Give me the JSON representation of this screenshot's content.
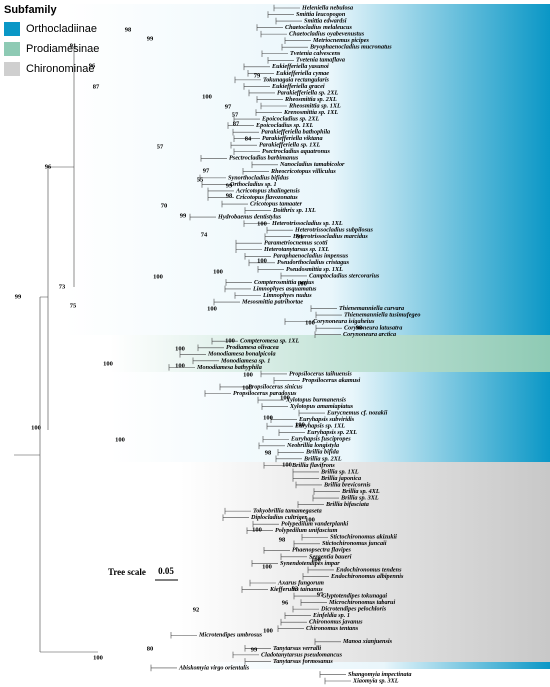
{
  "legend": {
    "title": "Subfamily",
    "items": [
      {
        "label": "Orthocladiinae",
        "color": "#0a97c6"
      },
      {
        "label": "Prodiamesinae",
        "color": "#8ecab4"
      },
      {
        "label": "Chironominae",
        "color": "#cfcfcf"
      }
    ]
  },
  "taxa": [
    "Heleniella nebulosa",
    "Smittia leucopogon",
    "Smittia edwardsi",
    "Chaetocladius melaleucus",
    "Chaetocladius oyabevenustus",
    "Metriocnemus picipes",
    "Bryophaenocladius mucronatus",
    "Tvetenia calvescens",
    "Tvetenia tamaflava",
    "Eukiefferiella yasunoi",
    "Eukiefferiella cymae",
    "Tokunagaia rectangularis",
    "Eukiefferiella gracei",
    "Parakiefferiella sp. 2XL",
    "Rheosmittia sp. 2XL",
    "Rheosmittia sp. 1XL",
    "Krenosmittia sp. 1XL",
    "Epoicocladius sp. 2XL",
    "Epoicocladius sp. 1XL",
    "Parakiefferiella bathophila",
    "Parakiefferiella viktana",
    "Parakiefferiella sp. 1XL",
    "Psectrocladius aquatronus",
    "Psectrocladius barbimanus",
    "Nanocladius tamabicolor",
    "Rheocricotopus villiculus",
    "Synorthocladius bifidus",
    "Orthocladius sp. 1",
    "Acricotopus zhalingensis",
    "Cricotopus flavozonatus",
    "Cricotopus tamaater",
    "Doithrix sp. 1XL",
    "Hydrobaenus dentistylus",
    "Heterotrissocladius sp. 1XL",
    "Heterotrissocladius subpilosus",
    "Heterotrissocladius marcidus",
    "Parametriocnemus scotti",
    "Heterotanytarsus sp. 1XL",
    "Paraphaenocladius impensus",
    "Pseudorthocladius cristagus",
    "Pseudosmittia sp. 1XL",
    "Camptocladius stercorarius",
    "Compterosmittia nerius",
    "Limnophyes asquamatus",
    "Limnophyes nudus",
    "Mesosmittia patrihortae",
    "Thienemanniella curvara",
    "Thienemanniella tusimufegeo",
    "Corynoneura isigaheius",
    "Corynoneura latusatra",
    "Corynoneura arctica",
    "Compteromesa sp. 1XL",
    "Prodiamesa olivacea",
    "Monodiamesa bonalpicola",
    "Monodiamesa sp. 1",
    "Monodiamesa bathyphila",
    "Propsilocerus taihuensis",
    "Propsilocerus akamusi",
    "Propsilocerus sinicus",
    "Propsilocerus paradoxus",
    "Xylotopus burmanensis",
    "Xylotopus amamiapiatus",
    "Eurycnemus cf. nozakii",
    "Euryhapsis subviridis",
    "Euryhapsis sp. 1XL",
    "Euryhapsis sp. 2XL",
    "Euryhapsis fuscipropes",
    "Neobrillia longistyla",
    "Brillia bifida",
    "Brillia sp. 2XL",
    "Brillia flavifrons",
    "Brillia sp. 1XL",
    "Brillia japonica",
    "Brillia brevicornis",
    "Brillia sp. 4XL",
    "Brillia sp. 3XL",
    "Brillia bifasciata",
    "Tokyobrillia tamamegaseta",
    "Diplocladius cultriger",
    "Polypedilum vanderplanki",
    "Polypedilum unifascium",
    "Stictochironomus akizukii",
    "Stictochironomus juncaii",
    "Phaenopsectra flavipes",
    "Sergentia baueri",
    "Synendotendipes impar",
    "Endochironomus tendens",
    "Endochironomus albipennis",
    "Axarus fungorum",
    "Kiefferulus tainanus",
    "Glyptotendipes tokunagai",
    "Microchironomus tabarui",
    "Dicrotendipes pelochloris",
    "Einfeldia sp. 1",
    "Chironomus javanus",
    "Chironomus tentans",
    "Microtendipes umbrosus",
    "Manoa xianjuensis",
    "Tanytarsus verralli",
    "Cladotanytarsus pseudomancus",
    "Tanytarsus formosanus",
    "Abiskomyia virgo orientalis",
    "Shangomyia impectinata",
    "Xiaomyia sp. 3XL"
  ],
  "support": [
    98,
    99,
    91,
    96,
    79,
    87,
    100,
    97,
    57,
    87,
    84,
    57,
    96,
    97,
    99,
    98,
    70,
    55,
    99,
    74,
    91,
    100,
    100,
    100,
    100,
    73,
    99,
    100,
    75,
    100,
    100,
    98,
    100,
    100,
    100,
    100,
    100,
    100,
    100,
    100,
    100,
    100,
    100,
    100,
    98,
    100,
    100,
    98,
    100,
    100,
    93,
    96,
    97,
    92,
    80,
    99,
    100,
    100
  ],
  "tree_scale": {
    "label": "Tree scale",
    "value": 0.05
  }
}
